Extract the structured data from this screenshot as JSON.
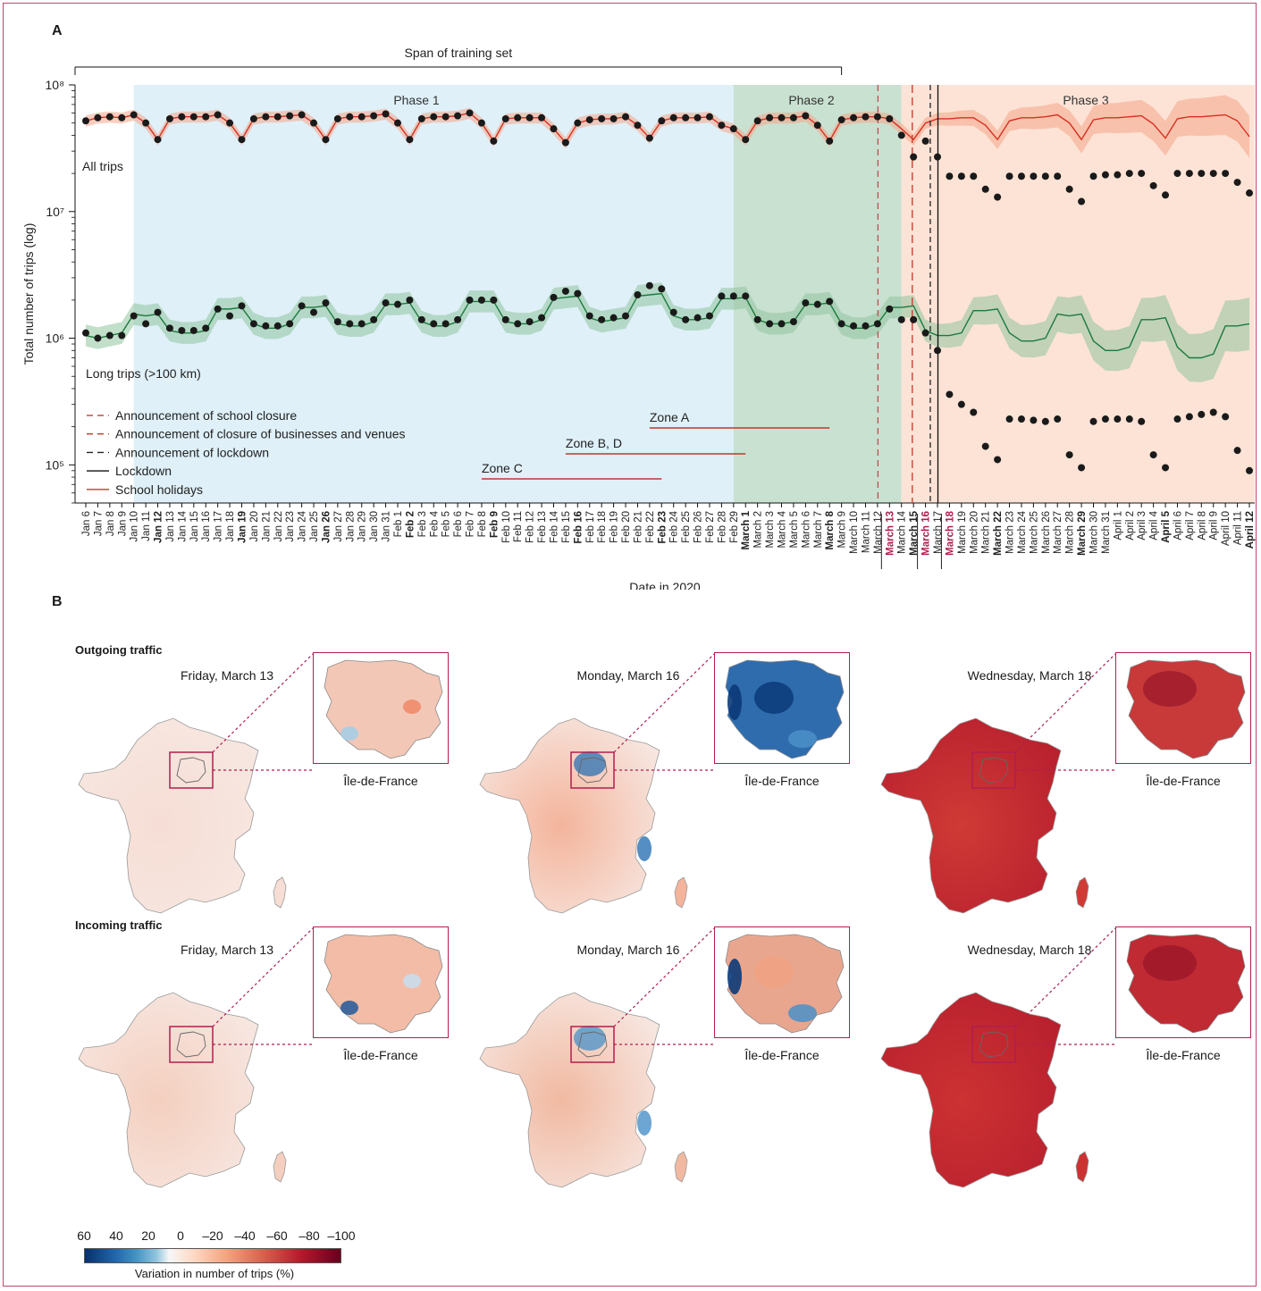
{
  "panel_a": {
    "label": "A",
    "training_span_label": "Span of training set",
    "phase_labels": [
      "Phase 1",
      "Phase 2",
      "Phase 3"
    ],
    "series_labels": {
      "all": "All trips",
      "long": "Long trips (>100 km)"
    },
    "ylabel": "Total number of trips (log)",
    "xlabel": "Date in 2020",
    "ytick_labels": [
      "10⁸",
      "10⁷",
      "10⁶",
      "10⁵"
    ],
    "legend": [
      {
        "label": "Announcement of school closure",
        "style": "dashed",
        "color": "#b5524f"
      },
      {
        "label": "Announcement of closure of businesses and venues",
        "style": "dashed",
        "color": "#c0392b"
      },
      {
        "label": "Announcement of lockdown",
        "style": "dashed",
        "color": "#222222"
      },
      {
        "label": "Lockdown",
        "style": "solid",
        "color": "#111111"
      },
      {
        "label": "School holidays",
        "style": "solid",
        "color": "#c0392b"
      }
    ],
    "zones": [
      {
        "label": "Zone A",
        "start": "Feb 22",
        "end": "March 8"
      },
      {
        "label": "Zone B, D",
        "start": "Feb 15",
        "end": "March 1"
      },
      {
        "label": "Zone C",
        "start": "Feb 8",
        "end": "Feb 23"
      }
    ]
  },
  "panel_b": {
    "label": "B",
    "outgoing_label": "Outgoing traffic",
    "incoming_label": "Incoming traffic",
    "map_titles": [
      "Friday, March 13",
      "Monday, March 16",
      "Wednesday, March 18"
    ],
    "inset_label": "Île-de-France",
    "colorbar_ticks": [
      "60",
      "40",
      "20",
      "0",
      "–20",
      "–40",
      "–60",
      "–80",
      "–100"
    ],
    "colorbar_label": "Variation in number of trips (%)"
  },
  "chart_data": {
    "type": "line",
    "scale": "log",
    "ylim": [
      50000,
      100000000
    ],
    "dates": [
      "Jan 6",
      "Jan 7",
      "Jan 8",
      "Jan 9",
      "Jan 10",
      "Jan 11",
      "Jan 12",
      "Jan 13",
      "Jan 14",
      "Jan 15",
      "Jan 16",
      "Jan 17",
      "Jan 18",
      "Jan 19",
      "Jan 20",
      "Jan 21",
      "Jan 22",
      "Jan 23",
      "Jan 24",
      "Jan 25",
      "Jan 26",
      "Jan 27",
      "Jan 28",
      "Jan 29",
      "Jan 30",
      "Jan 31",
      "Feb 1",
      "Feb 2",
      "Feb 3",
      "Feb 4",
      "Feb 5",
      "Feb 6",
      "Feb 7",
      "Feb 8",
      "Feb 9",
      "Feb 10",
      "Feb 11",
      "Feb 12",
      "Feb 13",
      "Feb 14",
      "Feb 15",
      "Feb 16",
      "Feb 17",
      "Feb 18",
      "Feb 19",
      "Feb 20",
      "Feb 21",
      "Feb 22",
      "Feb 23",
      "Feb 24",
      "Feb 25",
      "Feb 26",
      "Feb 27",
      "Feb 28",
      "Feb 29",
      "March 1",
      "March 2",
      "March 3",
      "March 4",
      "March 5",
      "March 6",
      "March 7",
      "March 8",
      "March 9",
      "March 10",
      "March 11",
      "March 12",
      "March 13",
      "March 14",
      "March 15",
      "March 16",
      "March 17",
      "March 18",
      "March 19",
      "March 20",
      "March 21",
      "March 22",
      "March 23",
      "March 24",
      "March 25",
      "March 26",
      "March 27",
      "March 28",
      "March 29",
      "March 30",
      "March 31",
      "April 1",
      "April 2",
      "April 3",
      "April 4",
      "April 5",
      "April 6",
      "April 7",
      "April 8",
      "April 9",
      "April 10",
      "April 11",
      "April 12"
    ],
    "bold_dates": [
      "Jan 12",
      "Jan 19",
      "Jan 26",
      "Feb 2",
      "Feb 9",
      "Feb 16",
      "Feb 23",
      "March 1",
      "March 8",
      "March 15",
      "March 22",
      "March 29",
      "April 5",
      "April 12"
    ],
    "highlight_dates": [
      "March 13",
      "March 16",
      "March 18"
    ],
    "phases": [
      {
        "name": "Phase 1",
        "start": "Jan 10",
        "end": "Feb 29"
      },
      {
        "name": "Phase 2",
        "start": "Feb 29",
        "end": "March 14"
      },
      {
        "name": "Phase 3",
        "start": "March 14",
        "end": "April 12"
      }
    ],
    "training_span": {
      "start": "Jan 6",
      "end": "March 9"
    },
    "events": [
      {
        "name": "Announcement of school closure",
        "date": "March 12"
      },
      {
        "name": "Announcement of closure of businesses and venues",
        "date": "March 14"
      },
      {
        "name": "Announcement of lockdown",
        "date": "March 16"
      },
      {
        "name": "Lockdown",
        "date": "March 17"
      }
    ],
    "school_holidays": [
      {
        "zone": "Zone A",
        "start": "Feb 22",
        "end": "March 8"
      },
      {
        "zone": "Zone B, D",
        "start": "Feb 15",
        "end": "March 1"
      },
      {
        "zone": "Zone C",
        "start": "Feb 8",
        "end": "Feb 23"
      }
    ],
    "series": [
      {
        "name": "All trips",
        "observed": [
          52000000,
          55000000,
          56000000,
          55000000,
          58000000,
          50000000,
          37000000,
          54000000,
          56000000,
          56000000,
          56000000,
          58000000,
          50000000,
          37000000,
          54000000,
          56000000,
          56000000,
          57000000,
          58000000,
          50000000,
          37000000,
          54000000,
          56000000,
          56000000,
          57000000,
          59000000,
          50000000,
          37000000,
          54000000,
          56000000,
          56000000,
          57000000,
          60000000,
          50000000,
          36000000,
          54000000,
          55000000,
          55000000,
          55000000,
          45000000,
          35000000,
          50000000,
          53000000,
          54000000,
          54000000,
          56000000,
          48000000,
          38000000,
          52000000,
          55000000,
          55000000,
          55000000,
          56000000,
          48000000,
          45000000,
          37000000,
          52000000,
          55000000,
          55000000,
          55000000,
          57000000,
          48000000,
          36000000,
          53000000,
          55000000,
          56000000,
          56000000,
          54000000,
          40000000,
          27000000,
          36000000,
          27000000,
          19000000,
          19000000,
          19000000,
          15000000,
          13000000,
          19000000,
          19000000,
          19000000,
          19000000,
          19000000,
          15000000,
          12000000,
          19000000,
          19500000,
          19500000,
          20000000,
          20000000,
          16000000,
          13500000,
          20000000,
          20000000,
          20000000,
          20000000,
          20000000,
          17000000,
          14000000
        ],
        "predicted": [
          52000000,
          55000000,
          56000000,
          55000000,
          58000000,
          50000000,
          37000000,
          54000000,
          56000000,
          56000000,
          56000000,
          58000000,
          50000000,
          37000000,
          54000000,
          56000000,
          56000000,
          57000000,
          58000000,
          50000000,
          37000000,
          54000000,
          56000000,
          56000000,
          57000000,
          59000000,
          50000000,
          37000000,
          54000000,
          56000000,
          56000000,
          57000000,
          60000000,
          50000000,
          36000000,
          54000000,
          55000000,
          55000000,
          55000000,
          45000000,
          35000000,
          50000000,
          53000000,
          54000000,
          54000000,
          56000000,
          48000000,
          38000000,
          52000000,
          55000000,
          55000000,
          55000000,
          56000000,
          48000000,
          45000000,
          37000000,
          52000000,
          55000000,
          55000000,
          55000000,
          57000000,
          48000000,
          36000000,
          53000000,
          55000000,
          56000000,
          56000000,
          54000000,
          45000000,
          37000000,
          50000000,
          54000000,
          54000000,
          55000000,
          55000000,
          48000000,
          37000000,
          52000000,
          55000000,
          55000000,
          56000000,
          58000000,
          50000000,
          37000000,
          53000000,
          55000000,
          55000000,
          56000000,
          57000000,
          49000000,
          38000000,
          54000000,
          56000000,
          56000000,
          57000000,
          58000000,
          52000000,
          39000000
        ]
      },
      {
        "name": "Long trips (>100 km)",
        "observed": [
          1100000,
          1000000,
          1050000,
          1050000,
          1500000,
          1300000,
          1600000,
          1200000,
          1150000,
          1150000,
          1200000,
          1700000,
          1500000,
          1800000,
          1300000,
          1250000,
          1250000,
          1300000,
          1800000,
          1600000,
          1900000,
          1350000,
          1300000,
          1300000,
          1400000,
          1900000,
          1850000,
          2000000,
          1400000,
          1300000,
          1300000,
          1400000,
          2000000,
          2000000,
          2000000,
          1400000,
          1300000,
          1350000,
          1450000,
          2100000,
          2350000,
          2250000,
          1500000,
          1400000,
          1450000,
          1500000,
          2200000,
          2600000,
          2450000,
          1600000,
          1400000,
          1450000,
          1500000,
          2150000,
          2150000,
          2150000,
          1400000,
          1300000,
          1300000,
          1350000,
          1900000,
          1850000,
          1950000,
          1300000,
          1250000,
          1250000,
          1300000,
          1700000,
          1400000,
          1400000,
          1100000,
          800000,
          360000,
          300000,
          260000,
          140000,
          110000,
          230000,
          230000,
          225000,
          220000,
          230000,
          120000,
          95000,
          220000,
          230000,
          230000,
          230000,
          220000,
          120000,
          95000,
          230000,
          240000,
          250000,
          260000,
          240000,
          130000,
          90000
        ],
        "predicted": [
          1050000,
          1000000,
          1050000,
          1100000,
          1550000,
          1500000,
          1550000,
          1150000,
          1100000,
          1100000,
          1150000,
          1700000,
          1700000,
          1750000,
          1300000,
          1200000,
          1200000,
          1300000,
          1750000,
          1750000,
          1800000,
          1300000,
          1250000,
          1250000,
          1350000,
          1850000,
          1850000,
          1900000,
          1350000,
          1250000,
          1250000,
          1350000,
          1950000,
          1950000,
          1950000,
          1350000,
          1300000,
          1300000,
          1400000,
          2050000,
          2100000,
          2150000,
          1450000,
          1350000,
          1400000,
          1450000,
          2150000,
          2200000,
          2250000,
          1500000,
          1400000,
          1400000,
          1450000,
          2050000,
          2050000,
          2100000,
          1400000,
          1300000,
          1300000,
          1350000,
          1850000,
          1850000,
          1900000,
          1300000,
          1200000,
          1200000,
          1300000,
          1750000,
          1750000,
          1800000,
          1150000,
          1050000,
          1050000,
          1100000,
          1650000,
          1650000,
          1700000,
          1100000,
          950000,
          950000,
          1000000,
          1550000,
          1500000,
          1550000,
          950000,
          800000,
          800000,
          850000,
          1400000,
          1400000,
          1450000,
          850000,
          700000,
          700000,
          750000,
          1250000,
          1250000,
          1300000
        ]
      }
    ]
  }
}
